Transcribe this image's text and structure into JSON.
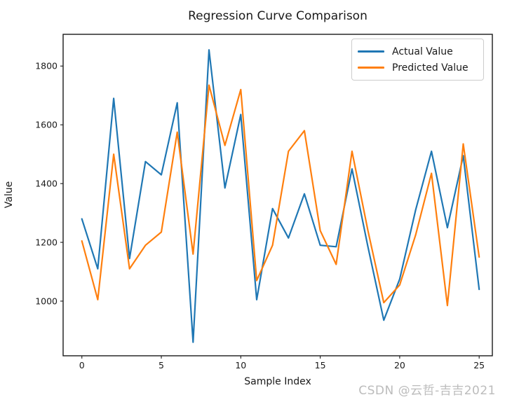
{
  "figure": {
    "title": "Regression Curve Comparison",
    "xlabel": "Sample Index",
    "ylabel": "Value",
    "watermark": "CSDN @云哲-吉吉2021"
  },
  "legend": {
    "items": [
      {
        "label": "Actual Value",
        "color": "#1f77b4"
      },
      {
        "label": "Predicted Value",
        "color": "#ff7f0e"
      }
    ]
  },
  "chart_data": {
    "type": "line",
    "title": "Regression Curve Comparison",
    "xlabel": "Sample Index",
    "ylabel": "Value",
    "x": [
      0,
      1,
      2,
      3,
      4,
      5,
      6,
      7,
      8,
      9,
      10,
      11,
      12,
      13,
      14,
      15,
      16,
      17,
      18,
      19,
      20,
      21,
      22,
      23,
      24,
      25
    ],
    "series": [
      {
        "name": "Actual Value",
        "color": "#1f77b4",
        "values": [
          1280,
          1110,
          1690,
          1145,
          1475,
          1430,
          1675,
          860,
          1855,
          1385,
          1635,
          1005,
          1315,
          1215,
          1365,
          1190,
          1185,
          1450,
          1185,
          935,
          1075,
          1310,
          1510,
          1250,
          1495,
          1040
        ]
      },
      {
        "name": "Predicted Value",
        "color": "#ff7f0e",
        "values": [
          1205,
          1005,
          1500,
          1110,
          1190,
          1235,
          1575,
          1160,
          1735,
          1530,
          1720,
          1070,
          1190,
          1510,
          1580,
          1240,
          1125,
          1510,
          1240,
          995,
          1055,
          1225,
          1435,
          985,
          1535,
          1150
        ]
      }
    ],
    "xlim": [
      -1.18,
      25.83
    ],
    "ylim": [
      814,
      1908
    ],
    "xticks": [
      0,
      5,
      10,
      15,
      20,
      25
    ],
    "yticks": [
      1000,
      1200,
      1400,
      1600,
      1800
    ],
    "grid": false,
    "legend_position": "upper right",
    "line_width": 2.2
  }
}
